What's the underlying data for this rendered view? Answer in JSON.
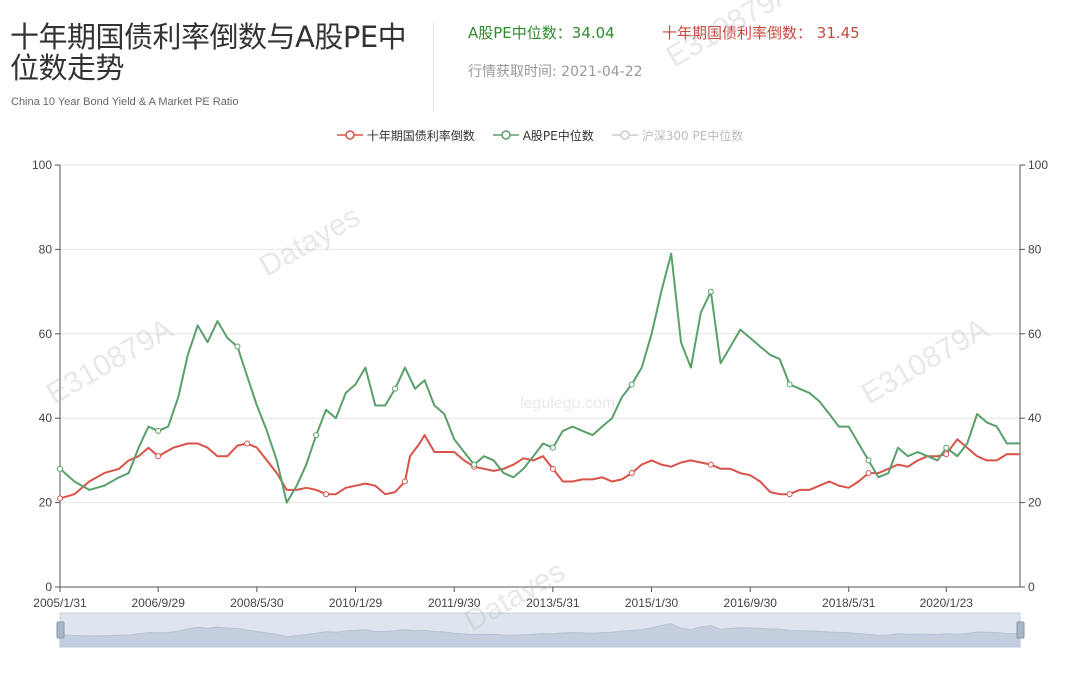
{
  "header": {
    "title": "十年期国债利率倒数与A股PE中位数走势",
    "subtitle": "China 10 Year Bond Yield & A Market PE Ratio",
    "pe_stat": "A股PE中位数：34.04",
    "bond_stat": "十年期国债利率倒数： 31.45",
    "fetch_time": "行情获取时间: 2021-04-22"
  },
  "watermarks": [
    "Datayes",
    "E310879A",
    "E310879A",
    "Datayes",
    "legulegu.com",
    "E310879A"
  ],
  "colors": {
    "bond": "#d9534a",
    "pe": "#5aa06b",
    "hs300": "#cccccc",
    "grid": "#e4e4e4",
    "axis": "#555555"
  },
  "chart_data": {
    "type": "line",
    "ylim": [
      0,
      100
    ],
    "y_ticks": [
      0,
      20,
      40,
      60,
      80,
      100
    ],
    "x_tick_labels": [
      "2005/1/31",
      "2006/9/29",
      "2008/5/30",
      "2010/1/29",
      "2011/9/30",
      "2013/5/31",
      "2015/1/30",
      "2016/9/30",
      "2018/5/31",
      "2020/1/23"
    ],
    "x_range": [
      "2005-01-31",
      "2021-04-22"
    ],
    "legend": [
      {
        "name": "十年期国债利率倒数",
        "color": "#d9534a",
        "visible": true
      },
      {
        "name": "A股PE中位数",
        "color": "#5aa06b",
        "visible": true
      },
      {
        "name": "沪深300 PE中位数",
        "color": "#cccccc",
        "visible": false
      }
    ],
    "series": [
      {
        "name": "十年期国债利率倒数",
        "points": [
          [
            "2005-01-31",
            21
          ],
          [
            "2005-04-30",
            22
          ],
          [
            "2005-07-31",
            25
          ],
          [
            "2005-10-31",
            27
          ],
          [
            "2006-01-31",
            28
          ],
          [
            "2006-03-31",
            30
          ],
          [
            "2006-05-31",
            31
          ],
          [
            "2006-07-31",
            33
          ],
          [
            "2006-09-29",
            31
          ],
          [
            "2006-12-31",
            33
          ],
          [
            "2007-03-31",
            34
          ],
          [
            "2007-05-31",
            34
          ],
          [
            "2007-07-31",
            33
          ],
          [
            "2007-09-30",
            31
          ],
          [
            "2007-11-30",
            31
          ],
          [
            "2008-01-31",
            33.5
          ],
          [
            "2008-03-31",
            34
          ],
          [
            "2008-05-30",
            33
          ],
          [
            "2008-07-31",
            30
          ],
          [
            "2008-09-30",
            27
          ],
          [
            "2008-11-30",
            23
          ],
          [
            "2009-01-31",
            23
          ],
          [
            "2009-03-31",
            23.5
          ],
          [
            "2009-05-31",
            23
          ],
          [
            "2009-07-31",
            22
          ],
          [
            "2009-09-30",
            22
          ],
          [
            "2009-11-30",
            23.5
          ],
          [
            "2010-01-29",
            24
          ],
          [
            "2010-03-31",
            24.5
          ],
          [
            "2010-05-31",
            24
          ],
          [
            "2010-07-31",
            22
          ],
          [
            "2010-09-30",
            22.5
          ],
          [
            "2010-11-30",
            25
          ],
          [
            "2010-12-31",
            31
          ],
          [
            "2011-02-28",
            34
          ],
          [
            "2011-03-31",
            36
          ],
          [
            "2011-05-31",
            32
          ],
          [
            "2011-07-31",
            32
          ],
          [
            "2011-09-30",
            32
          ],
          [
            "2011-11-30",
            30
          ],
          [
            "2012-01-31",
            28.5
          ],
          [
            "2012-03-31",
            28
          ],
          [
            "2012-05-31",
            27.5
          ],
          [
            "2012-07-31",
            28
          ],
          [
            "2012-09-30",
            29
          ],
          [
            "2012-11-30",
            30.5
          ],
          [
            "2013-01-31",
            30
          ],
          [
            "2013-03-31",
            31
          ],
          [
            "2013-05-31",
            28
          ],
          [
            "2013-07-31",
            25
          ],
          [
            "2013-09-30",
            25
          ],
          [
            "2013-11-30",
            25.5
          ],
          [
            "2014-01-31",
            25.5
          ],
          [
            "2014-03-31",
            26
          ],
          [
            "2014-05-31",
            25
          ],
          [
            "2014-07-31",
            25.5
          ],
          [
            "2014-09-30",
            27
          ],
          [
            "2014-11-30",
            29
          ],
          [
            "2015-01-30",
            30
          ],
          [
            "2015-03-31",
            29
          ],
          [
            "2015-05-31",
            28.5
          ],
          [
            "2015-07-31",
            29.5
          ],
          [
            "2015-09-30",
            30
          ],
          [
            "2015-11-30",
            29.5
          ],
          [
            "2016-01-31",
            29
          ],
          [
            "2016-03-31",
            28
          ],
          [
            "2016-05-31",
            28
          ],
          [
            "2016-07-31",
            27
          ],
          [
            "2016-09-30",
            26.5
          ],
          [
            "2016-11-30",
            25
          ],
          [
            "2017-01-31",
            22.5
          ],
          [
            "2017-03-31",
            22
          ],
          [
            "2017-05-31",
            22
          ],
          [
            "2017-07-31",
            23
          ],
          [
            "2017-09-30",
            23
          ],
          [
            "2017-11-30",
            24
          ],
          [
            "2018-01-31",
            25
          ],
          [
            "2018-03-31",
            24
          ],
          [
            "2018-05-31",
            23.5
          ],
          [
            "2018-07-31",
            25
          ],
          [
            "2018-09-30",
            27
          ],
          [
            "2018-11-30",
            27
          ],
          [
            "2019-01-31",
            28
          ],
          [
            "2019-03-31",
            29
          ],
          [
            "2019-05-31",
            28.5
          ],
          [
            "2019-07-31",
            30
          ],
          [
            "2019-09-30",
            31
          ],
          [
            "2019-11-30",
            31
          ],
          [
            "2020-01-23",
            31.5
          ],
          [
            "2020-03-31",
            35
          ],
          [
            "2020-05-31",
            33
          ],
          [
            "2020-07-31",
            31
          ],
          [
            "2020-09-30",
            30
          ],
          [
            "2020-11-30",
            30
          ],
          [
            "2021-01-31",
            31.5
          ],
          [
            "2021-04-22",
            31.45
          ]
        ]
      },
      {
        "name": "A股PE中位数",
        "points": [
          [
            "2005-01-31",
            28
          ],
          [
            "2005-04-30",
            25
          ],
          [
            "2005-07-31",
            23
          ],
          [
            "2005-10-31",
            24
          ],
          [
            "2006-01-31",
            26
          ],
          [
            "2006-03-31",
            27
          ],
          [
            "2006-05-31",
            33
          ],
          [
            "2006-07-31",
            38
          ],
          [
            "2006-09-29",
            37
          ],
          [
            "2006-11-30",
            38
          ],
          [
            "2007-01-31",
            45
          ],
          [
            "2007-03-31",
            55
          ],
          [
            "2007-05-31",
            62
          ],
          [
            "2007-07-31",
            58
          ],
          [
            "2007-09-30",
            63
          ],
          [
            "2007-11-30",
            59
          ],
          [
            "2008-01-31",
            57
          ],
          [
            "2008-03-31",
            50
          ],
          [
            "2008-05-30",
            43
          ],
          [
            "2008-07-31",
            37
          ],
          [
            "2008-09-30",
            30
          ],
          [
            "2008-11-30",
            20
          ],
          [
            "2009-01-31",
            24
          ],
          [
            "2009-03-31",
            29
          ],
          [
            "2009-05-31",
            36
          ],
          [
            "2009-07-31",
            42
          ],
          [
            "2009-09-30",
            40
          ],
          [
            "2009-11-30",
            46
          ],
          [
            "2010-01-29",
            48
          ],
          [
            "2010-03-31",
            52
          ],
          [
            "2010-05-31",
            43
          ],
          [
            "2010-07-31",
            43
          ],
          [
            "2010-09-30",
            47
          ],
          [
            "2010-11-30",
            52
          ],
          [
            "2011-01-31",
            47
          ],
          [
            "2011-03-31",
            49
          ],
          [
            "2011-05-31",
            43
          ],
          [
            "2011-07-31",
            41
          ],
          [
            "2011-09-30",
            35
          ],
          [
            "2011-11-30",
            32
          ],
          [
            "2012-01-31",
            29
          ],
          [
            "2012-03-31",
            31
          ],
          [
            "2012-05-31",
            30
          ],
          [
            "2012-07-31",
            27
          ],
          [
            "2012-09-30",
            26
          ],
          [
            "2012-11-30",
            28
          ],
          [
            "2013-01-31",
            31
          ],
          [
            "2013-03-31",
            34
          ],
          [
            "2013-05-31",
            33
          ],
          [
            "2013-07-31",
            37
          ],
          [
            "2013-09-30",
            38
          ],
          [
            "2013-11-30",
            37
          ],
          [
            "2014-01-31",
            36
          ],
          [
            "2014-03-31",
            38
          ],
          [
            "2014-05-31",
            40
          ],
          [
            "2014-07-31",
            45
          ],
          [
            "2014-09-30",
            48
          ],
          [
            "2014-11-30",
            52
          ],
          [
            "2015-01-30",
            60
          ],
          [
            "2015-03-31",
            70
          ],
          [
            "2015-05-31",
            79
          ],
          [
            "2015-07-31",
            58
          ],
          [
            "2015-09-30",
            52
          ],
          [
            "2015-11-30",
            65
          ],
          [
            "2016-01-31",
            70
          ],
          [
            "2016-03-31",
            53
          ],
          [
            "2016-05-31",
            57
          ],
          [
            "2016-07-31",
            61
          ],
          [
            "2016-09-30",
            59
          ],
          [
            "2016-11-30",
            57
          ],
          [
            "2017-01-31",
            55
          ],
          [
            "2017-03-31",
            54
          ],
          [
            "2017-05-31",
            48
          ],
          [
            "2017-07-31",
            47
          ],
          [
            "2017-09-30",
            46
          ],
          [
            "2017-11-30",
            44
          ],
          [
            "2018-01-31",
            41
          ],
          [
            "2018-03-31",
            38
          ],
          [
            "2018-05-31",
            38
          ],
          [
            "2018-07-31",
            34
          ],
          [
            "2018-09-30",
            30
          ],
          [
            "2018-11-30",
            26
          ],
          [
            "2019-01-31",
            27
          ],
          [
            "2019-03-31",
            33
          ],
          [
            "2019-05-31",
            31
          ],
          [
            "2019-07-31",
            32
          ],
          [
            "2019-09-30",
            31
          ],
          [
            "2019-11-30",
            30
          ],
          [
            "2020-01-23",
            33
          ],
          [
            "2020-03-31",
            31
          ],
          [
            "2020-05-31",
            34
          ],
          [
            "2020-07-31",
            41
          ],
          [
            "2020-09-30",
            39
          ],
          [
            "2020-11-30",
            38
          ],
          [
            "2021-01-31",
            34
          ],
          [
            "2021-04-22",
            34.04
          ]
        ]
      },
      {
        "name": "沪深300 PE中位数",
        "points": []
      }
    ]
  }
}
